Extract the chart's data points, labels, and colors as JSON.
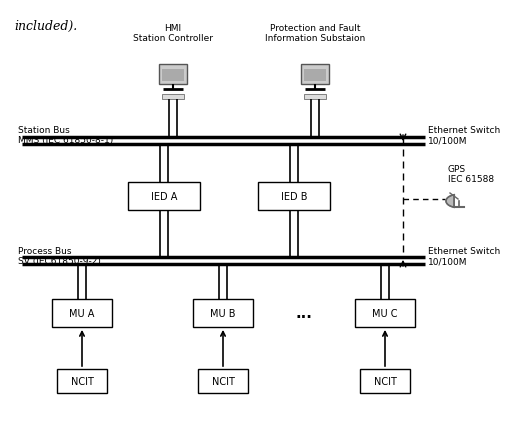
{
  "bg_color": "#ffffff",
  "station_bus_label": "Station Bus\nMMS (IEC 61850-8-1)",
  "process_bus_label": "Process Bus\nSV (IEC61850-9-2)",
  "hmi_label": "HMI\nStation Controller",
  "pfi_label": "Protection and Fault\nInformation Substaion",
  "eth_switch_top_label": "Ethernet Switch\n10/100M",
  "eth_switch_bot_label": "Ethernet Switch\n10/100M",
  "gps_label": "GPS\nIEC 61588",
  "ied_a_label": "IED A",
  "ied_b_label": "IED B",
  "mu_a_label": "MU A",
  "mu_b_label": "MU B",
  "mu_c_label": "MU C",
  "ncit_label": "NCIT",
  "dots_label": "...",
  "title_text": "included).",
  "line_color": "#000000",
  "text_color": "#000000"
}
